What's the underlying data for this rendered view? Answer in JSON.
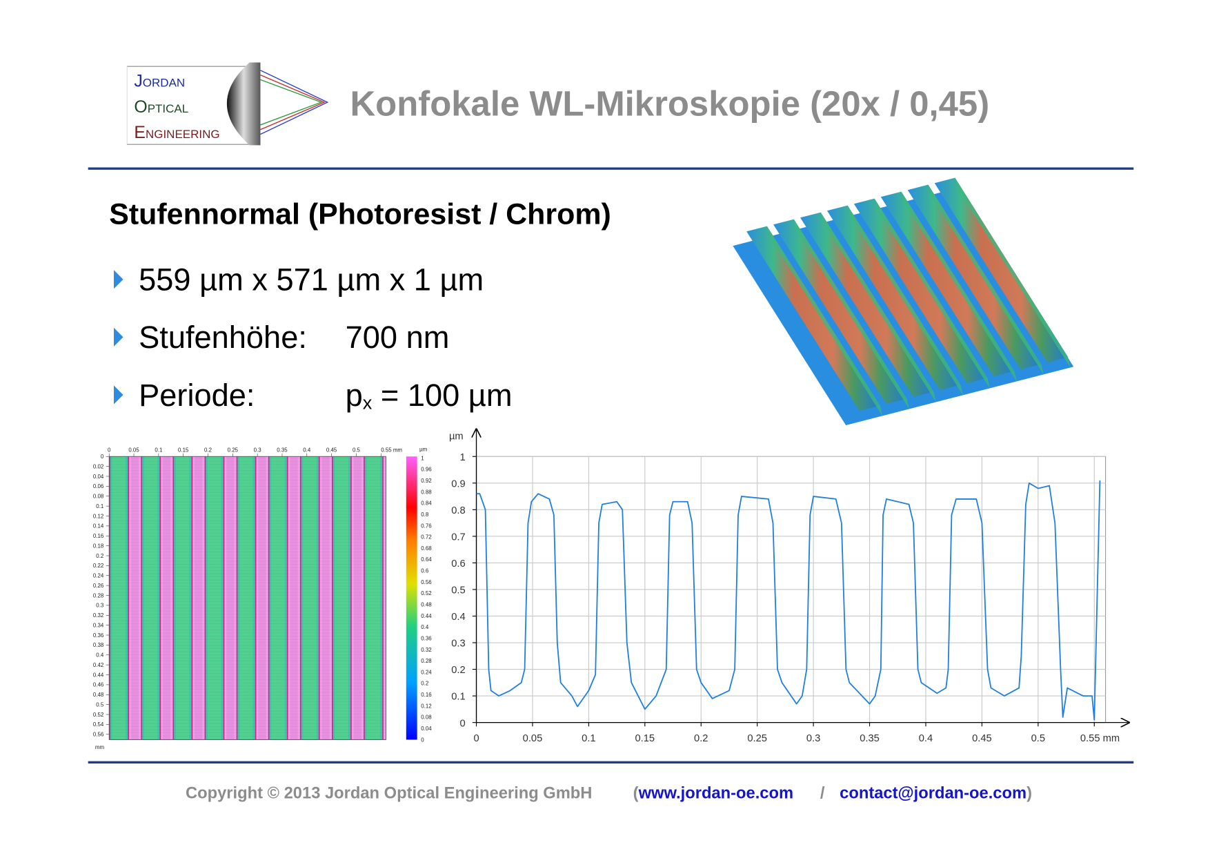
{
  "header": {
    "logo": [
      "Jordan",
      "Optical",
      "Engineering"
    ],
    "title": "Konfokale WL-Mikroskopie (20x / 0,45)"
  },
  "section": {
    "title": "Stufennormal (Photoresist / Chrom)",
    "bullets": [
      {
        "label": "559 µm x 571 µm x 1 µm"
      },
      {
        "label": "Stufenhöhe:",
        "value": "700 nm"
      },
      {
        "label": "Periode:",
        "value": "p",
        "subscript": "x",
        "rest": " = 100 µm"
      }
    ]
  },
  "heatmap": {
    "x_ticks": [
      "0",
      "0.05",
      "0.1",
      "0.15",
      "0.2",
      "0.25",
      "0.3",
      "0.35",
      "0.4",
      "0.45",
      "0.5",
      "0.55 mm"
    ],
    "y_ticks": [
      "0",
      "0.02",
      "0.04",
      "0.06",
      "0.08",
      "0.1",
      "0.12",
      "0.14",
      "0.16",
      "0.18",
      "0.2",
      "0.22",
      "0.24",
      "0.26",
      "0.28",
      "0.3",
      "0.32",
      "0.34",
      "0.36",
      "0.38",
      "0.4",
      "0.42",
      "0.44",
      "0.46",
      "0.48",
      "0.5",
      "0.52",
      "0.54",
      "0.56"
    ],
    "y_unit": "mm",
    "colorbar_unit": "µm",
    "colorbar_ticks": [
      "0",
      "0.04",
      "0.08",
      "0.12",
      "0.16",
      "0.2",
      "0.24",
      "0.28",
      "0.32",
      "0.36",
      "0.4",
      "0.44",
      "0.48",
      "0.52",
      "0.56",
      "0.6",
      "0.64",
      "0.68",
      "0.72",
      "0.76",
      "0.8",
      "0.84",
      "0.88",
      "0.92",
      "0.96",
      "1"
    ]
  },
  "chart_data": {
    "type": "line",
    "y_label": "µm",
    "color": "#1f7fe0",
    "grid": true,
    "xlim": [
      0,
      0.56
    ],
    "ylim": [
      0,
      1
    ],
    "xticks": [
      0,
      0.05,
      0.1,
      0.15,
      0.2,
      0.25,
      0.3,
      0.35,
      0.4,
      0.45,
      0.5,
      {
        "value": 0.55,
        "label": "0.55 mm"
      }
    ],
    "yticks": [
      0,
      0.1,
      0.2,
      0.3,
      0.4,
      0.5,
      0.6,
      0.7,
      0.8,
      0.9,
      1
    ],
    "x": [
      0,
      0.003,
      0.008,
      0.011,
      0.013,
      0.02,
      0.03,
      0.04,
      0.043,
      0.046,
      0.049,
      0.055,
      0.065,
      0.069,
      0.072,
      0.075,
      0.085,
      0.09,
      0.1,
      0.106,
      0.109,
      0.112,
      0.125,
      0.13,
      0.134,
      0.138,
      0.15,
      0.16,
      0.169,
      0.172,
      0.175,
      0.188,
      0.192,
      0.196,
      0.2,
      0.21,
      0.225,
      0.23,
      0.233,
      0.236,
      0.26,
      0.264,
      0.268,
      0.272,
      0.285,
      0.29,
      0.294,
      0.297,
      0.3,
      0.32,
      0.325,
      0.329,
      0.332,
      0.35,
      0.355,
      0.36,
      0.362,
      0.365,
      0.385,
      0.389,
      0.393,
      0.396,
      0.41,
      0.418,
      0.42,
      0.423,
      0.427,
      0.445,
      0.45,
      0.455,
      0.458,
      0.47,
      0.483,
      0.485,
      0.489,
      0.492,
      0.5,
      0.51,
      0.515,
      0.52,
      0.522,
      0.526,
      0.54,
      0.548,
      0.55,
      0.555
    ],
    "values": [
      0.86,
      0.86,
      0.8,
      0.2,
      0.12,
      0.1,
      0.12,
      0.15,
      0.2,
      0.75,
      0.83,
      0.86,
      0.84,
      0.78,
      0.3,
      0.15,
      0.1,
      0.06,
      0.12,
      0.18,
      0.75,
      0.82,
      0.83,
      0.8,
      0.3,
      0.15,
      0.05,
      0.1,
      0.2,
      0.78,
      0.83,
      0.83,
      0.75,
      0.2,
      0.15,
      0.09,
      0.12,
      0.2,
      0.78,
      0.85,
      0.84,
      0.75,
      0.2,
      0.15,
      0.07,
      0.1,
      0.2,
      0.78,
      0.85,
      0.84,
      0.75,
      0.2,
      0.15,
      0.07,
      0.1,
      0.2,
      0.78,
      0.84,
      0.82,
      0.75,
      0.2,
      0.15,
      0.11,
      0.13,
      0.2,
      0.78,
      0.84,
      0.84,
      0.75,
      0.2,
      0.13,
      0.1,
      0.13,
      0.25,
      0.82,
      0.9,
      0.88,
      0.89,
      0.75,
      0.2,
      0.02,
      0.13,
      0.1,
      0.1,
      0.01,
      0.91
    ]
  },
  "footer": {
    "copyright": "Copyright © 2013 Jordan Optical Engineering GmbH",
    "open": "(",
    "website": "www.jordan-oe.com",
    "separator": "/",
    "email": "contact@jordan-oe.com",
    "close": ")"
  }
}
